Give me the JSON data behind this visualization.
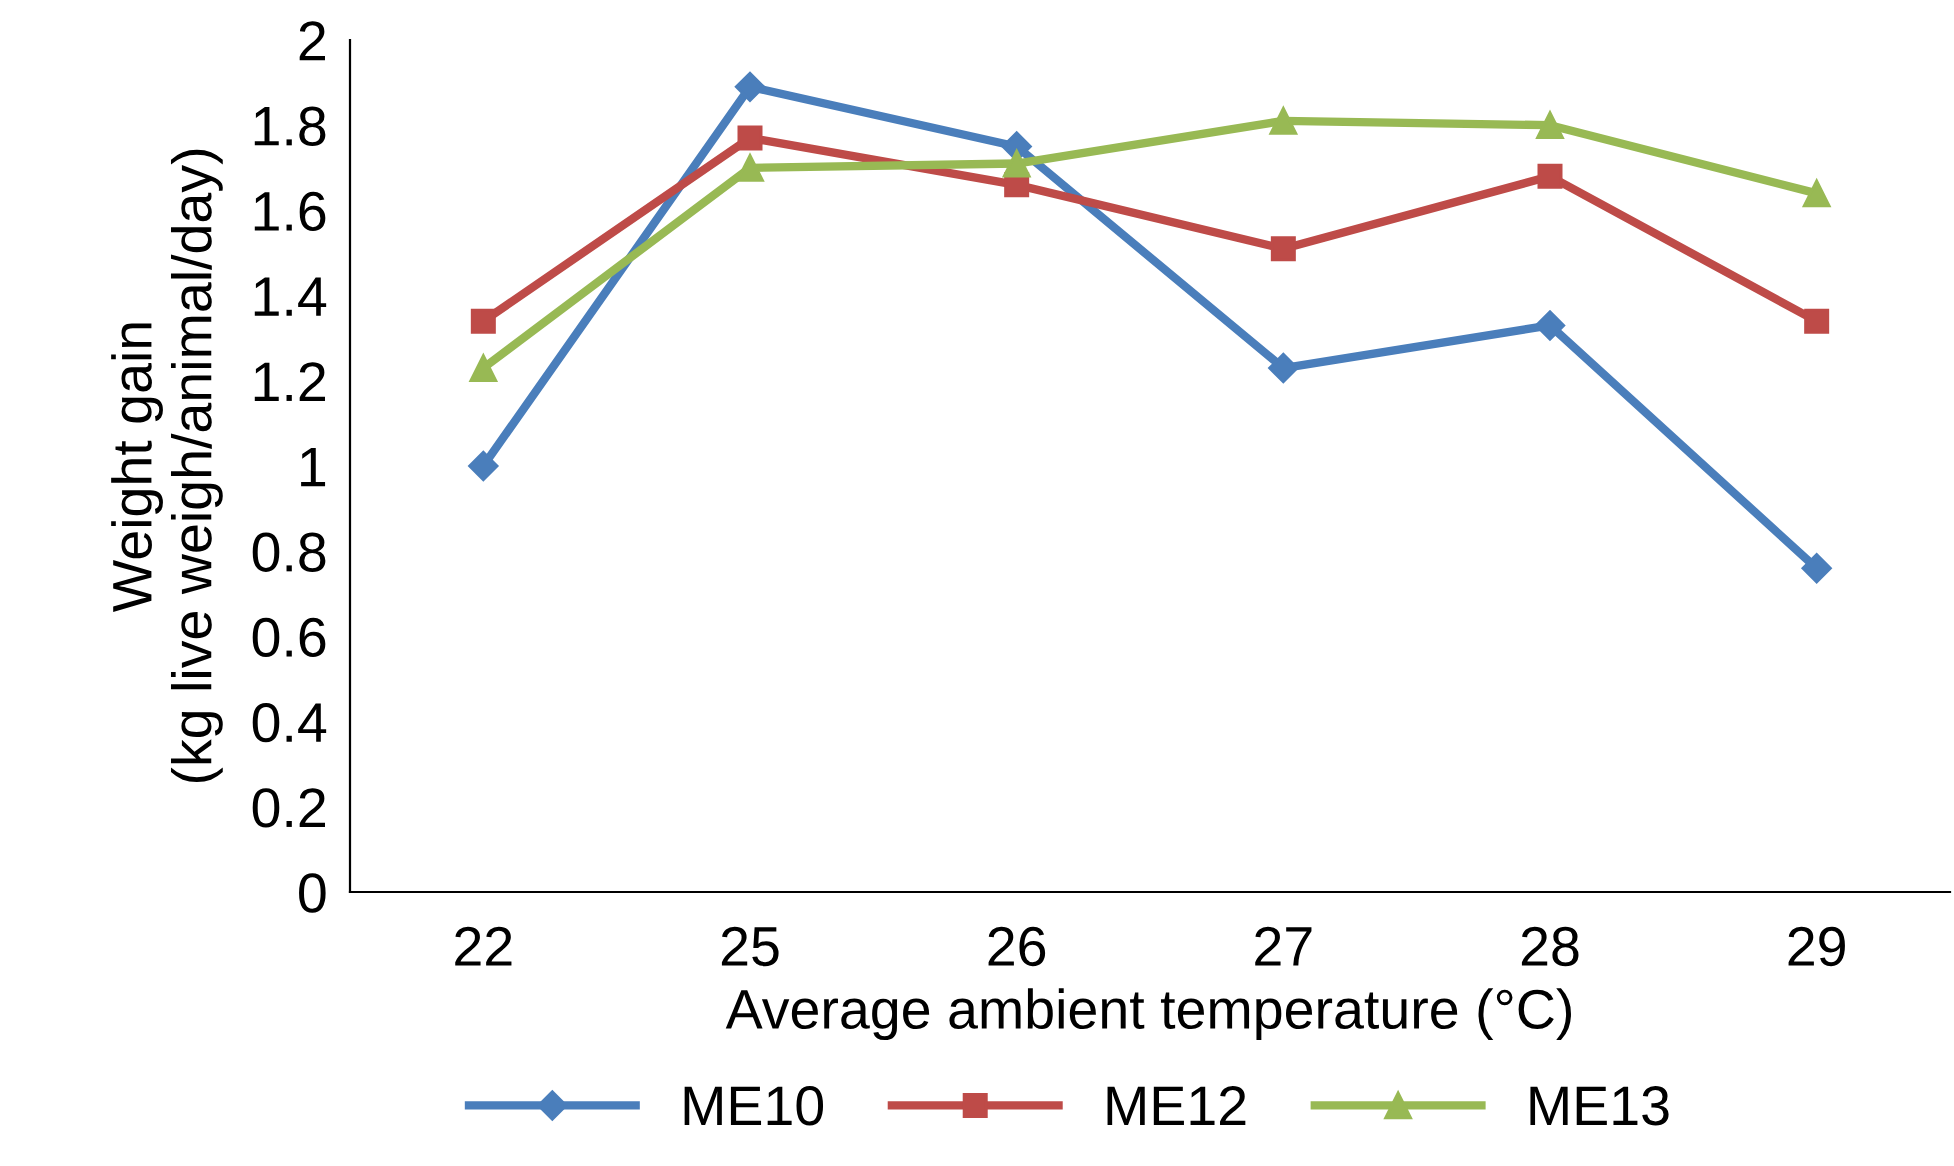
{
  "chart_data": {
    "type": "line",
    "xlabel": "Average ambient temperature (°C)",
    "ylabel": "Weight gain\n(kg live weigh/animal/day)",
    "categories": [
      "22",
      "25",
      "26",
      "27",
      "28",
      "29"
    ],
    "series": [
      {
        "name": "ME10",
        "color": "#4a7ebb",
        "marker": "diamond",
        "values": [
          1.0,
          1.89,
          1.75,
          1.23,
          1.33,
          0.76
        ]
      },
      {
        "name": "ME12",
        "color": "#be4b48",
        "marker": "square",
        "values": [
          1.34,
          1.77,
          1.66,
          1.51,
          1.68,
          1.34
        ]
      },
      {
        "name": "ME13",
        "color": "#98b954",
        "marker": "triangle",
        "values": [
          1.23,
          1.7,
          1.71,
          1.81,
          1.8,
          1.64
        ]
      }
    ],
    "ylim": [
      0,
      2
    ],
    "yticks": [
      0,
      0.2,
      0.4,
      0.6,
      0.8,
      1,
      1.2,
      1.4,
      1.6,
      1.8,
      2
    ],
    "grid": false,
    "legend": "bottom",
    "line_style": "solid"
  }
}
